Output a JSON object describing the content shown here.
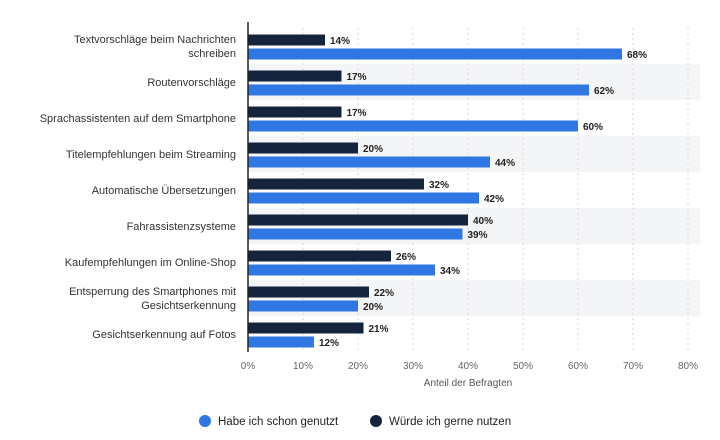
{
  "chart_data": {
    "type": "bar",
    "orientation": "horizontal",
    "categories": [
      [
        "Textvorschläge beim Nachrichten",
        "schreiben"
      ],
      [
        "Routenvorschläge"
      ],
      [
        "Sprachassistenten auf dem Smartphone"
      ],
      [
        "Titelempfehlungen beim Streaming"
      ],
      [
        "Automatische Übersetzungen"
      ],
      [
        "Fahrassistenzsysteme"
      ],
      [
        "Kaufempfehlungen im Online-Shop"
      ],
      [
        "Entsperrung des Smartphones mit",
        "Gesichtserkennung"
      ],
      [
        "Gesichtserkennung auf Fotos"
      ]
    ],
    "series": [
      {
        "name": "Würde ich gerne nutzen",
        "color": "#14243c",
        "values": [
          14,
          17,
          17,
          20,
          32,
          40,
          26,
          22,
          21
        ]
      },
      {
        "name": "Habe ich schon genutzt",
        "color": "#2f78e3",
        "values": [
          68,
          62,
          60,
          44,
          42,
          39,
          34,
          20,
          12
        ]
      }
    ],
    "value_suffix": "%",
    "xlabel": "Anteil der Befragten",
    "xlim": [
      0,
      80
    ],
    "xticks": [
      "0%",
      "10%",
      "20%",
      "30%",
      "40%",
      "50%",
      "60%",
      "70%",
      "80%"
    ],
    "grid": true,
    "legend": {
      "position": "bottom",
      "items": [
        {
          "label": "Habe ich schon genutzt",
          "color": "#2f78e3"
        },
        {
          "label": "Würde ich gerne nutzen",
          "color": "#14243c"
        }
      ]
    }
  }
}
